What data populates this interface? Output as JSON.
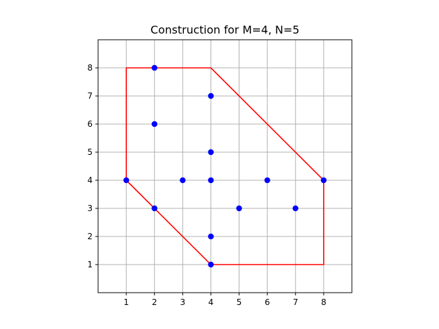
{
  "chart_data": {
    "type": "scatter",
    "title": "Construction for M=4, N=5",
    "xlabel": "",
    "ylabel": "",
    "xlim": [
      0,
      9
    ],
    "ylim": [
      0,
      9
    ],
    "xticks": [
      1,
      2,
      3,
      4,
      5,
      6,
      7,
      8
    ],
    "yticks": [
      1,
      2,
      3,
      4,
      5,
      6,
      7,
      8
    ],
    "grid": true,
    "aspect": "equal",
    "points": [
      {
        "x": 2,
        "y": 8
      },
      {
        "x": 4,
        "y": 7
      },
      {
        "x": 2,
        "y": 6
      },
      {
        "x": 4,
        "y": 5
      },
      {
        "x": 1,
        "y": 4
      },
      {
        "x": 3,
        "y": 4
      },
      {
        "x": 4,
        "y": 4
      },
      {
        "x": 6,
        "y": 4
      },
      {
        "x": 8,
        "y": 4
      },
      {
        "x": 2,
        "y": 3
      },
      {
        "x": 5,
        "y": 3
      },
      {
        "x": 7,
        "y": 3
      },
      {
        "x": 4,
        "y": 2
      },
      {
        "x": 4,
        "y": 1
      }
    ],
    "polygon": [
      {
        "x": 1,
        "y": 8
      },
      {
        "x": 4,
        "y": 8
      },
      {
        "x": 8,
        "y": 4
      },
      {
        "x": 8,
        "y": 1
      },
      {
        "x": 4,
        "y": 1
      },
      {
        "x": 1,
        "y": 4
      }
    ],
    "point_color": "#0000ff",
    "polygon_color": "#ff0000",
    "grid_color": "#b0b0b0"
  }
}
